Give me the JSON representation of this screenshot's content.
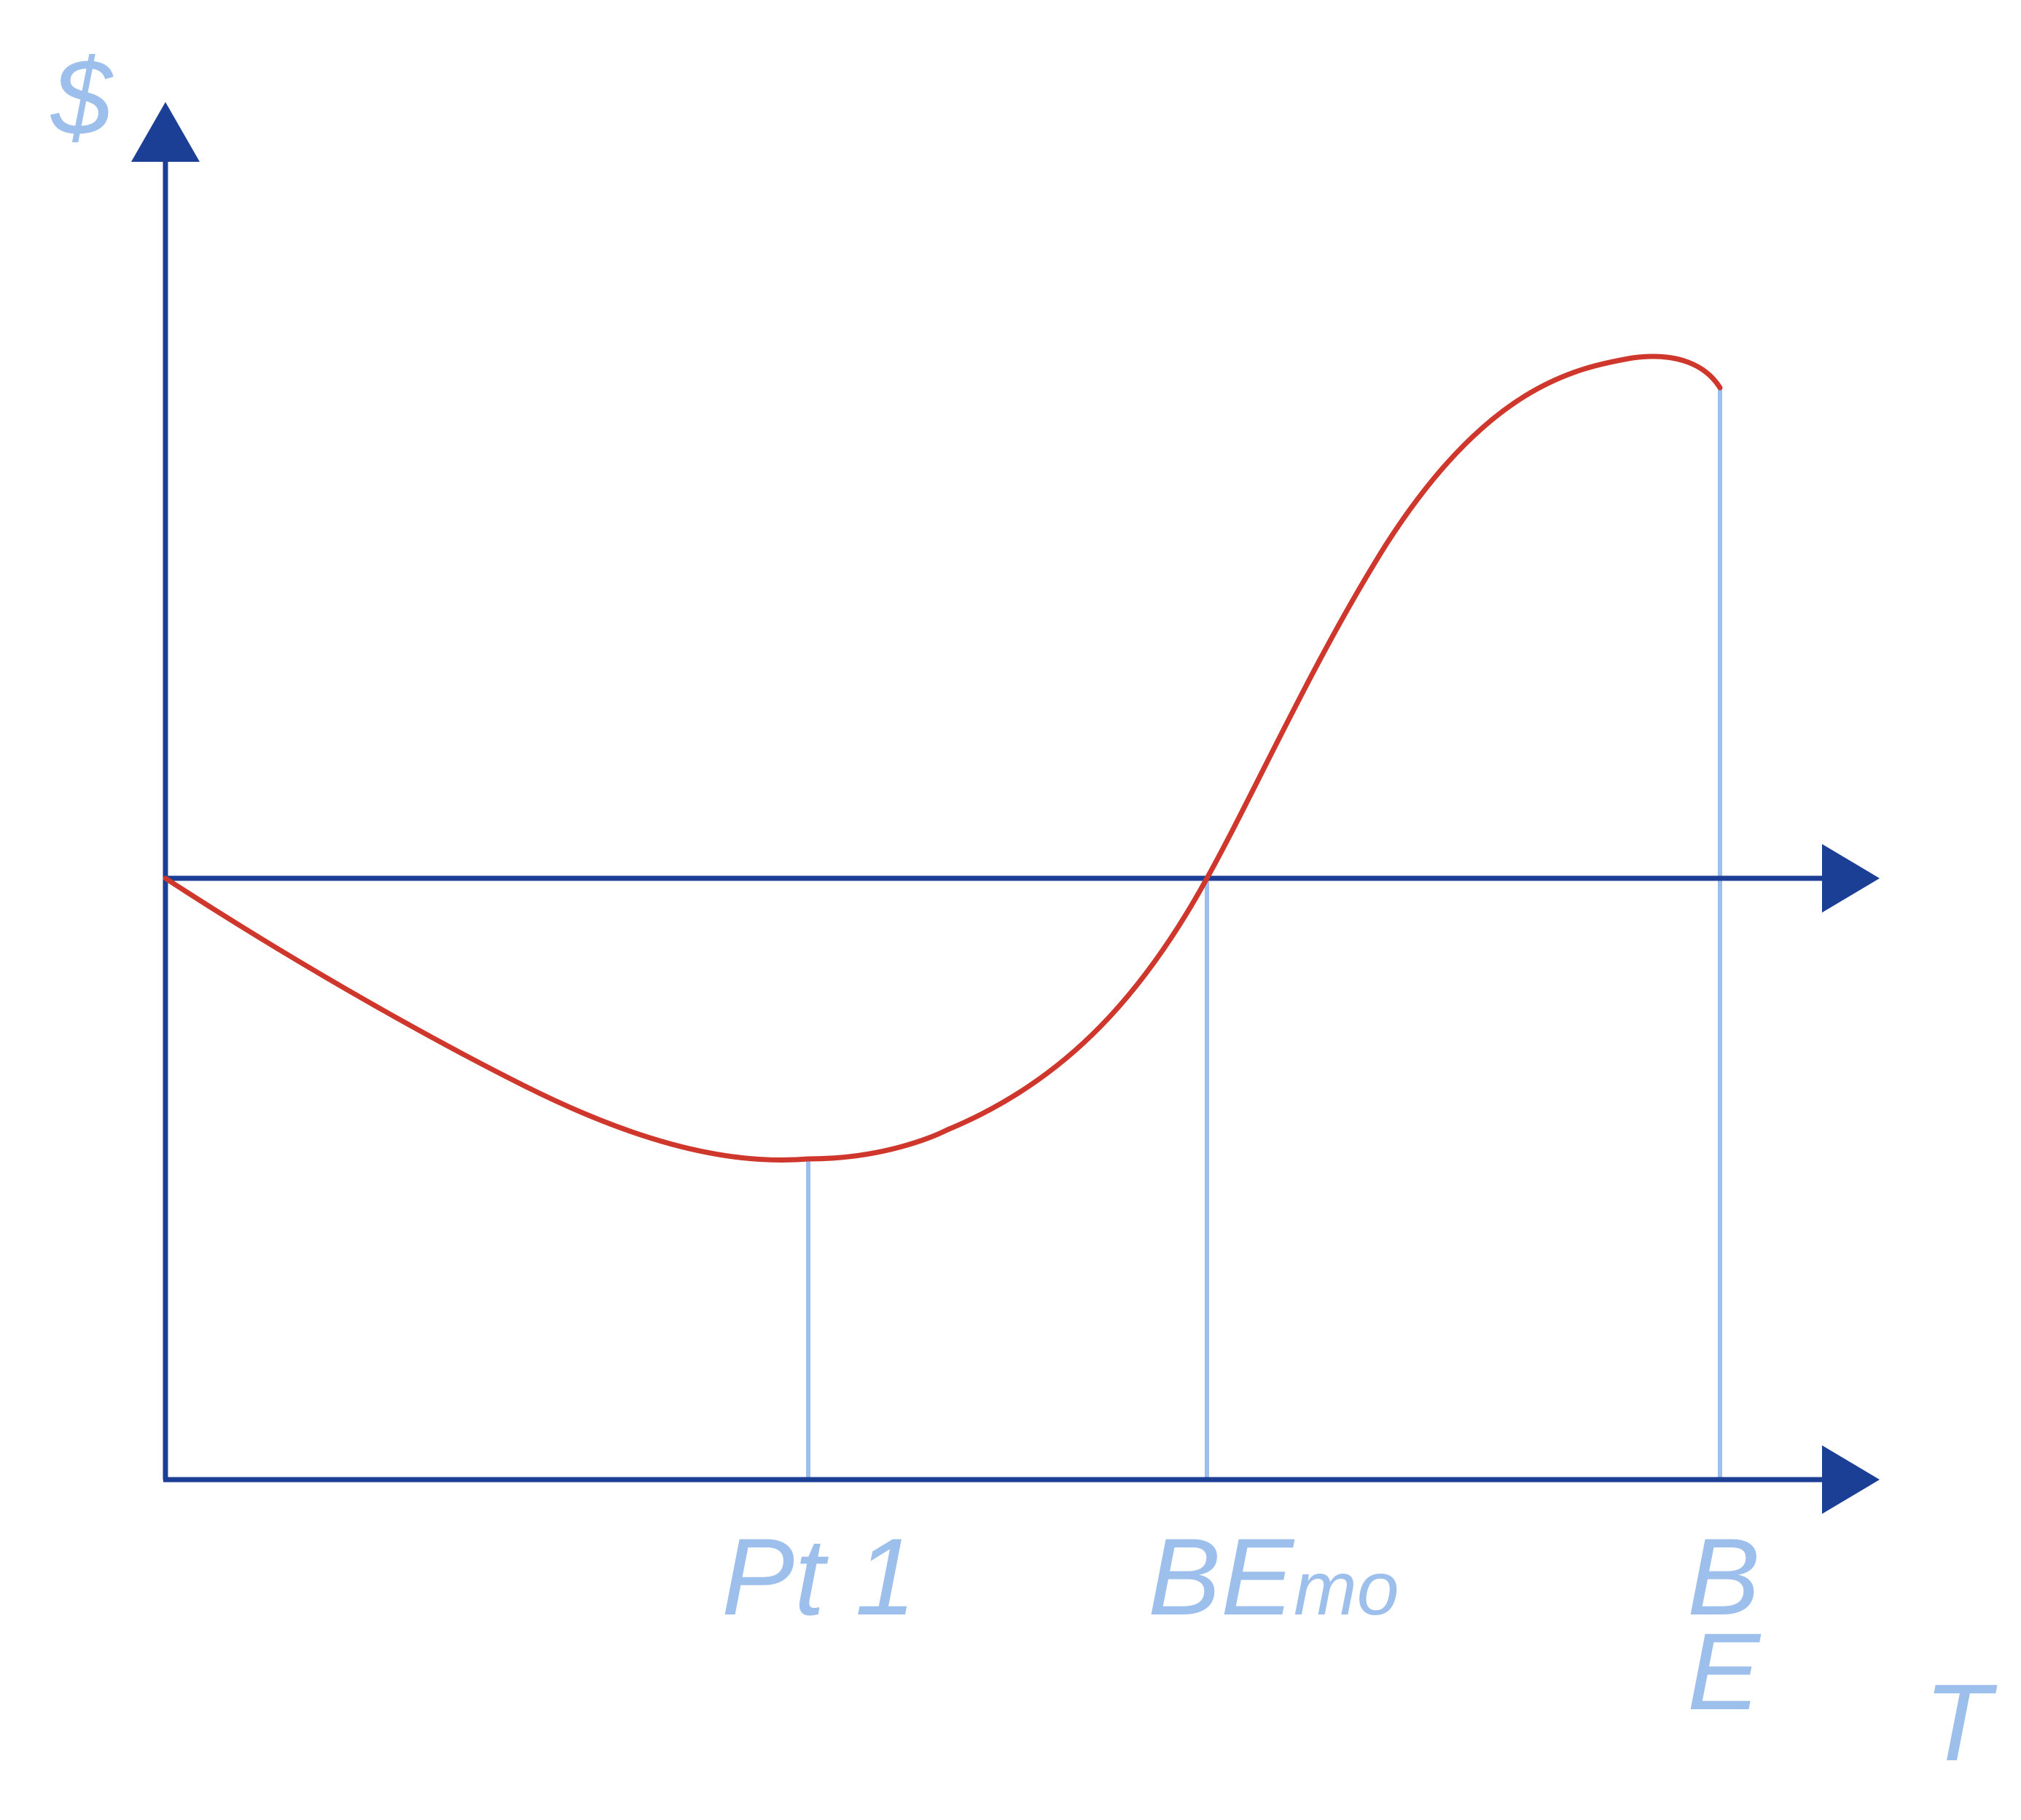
{
  "labels": {
    "y_axis": "$",
    "x_axis": "T",
    "pt1": "Pt 1",
    "be_main": "BE",
    "be_sub": "mo",
    "be2_line1": "B",
    "be2_line2": "E"
  },
  "colors": {
    "axis": "#1c3f96",
    "guide": "#9dbfec",
    "curve": "#cf372c",
    "label": "#9dbfec"
  }
}
